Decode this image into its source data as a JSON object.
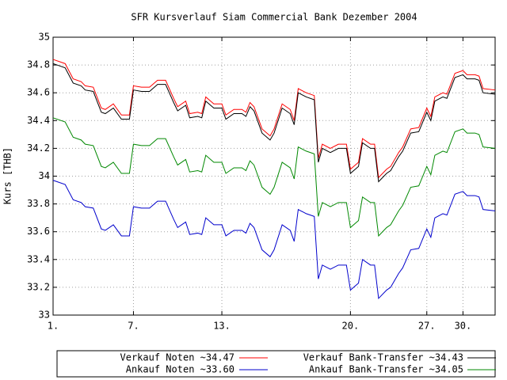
{
  "chart_data": {
    "type": "line",
    "title": "SFR Kursverlauf Siam Commercial Bank Dezember 2004",
    "y_label": "Kurs [THB]",
    "x": [
      0,
      3,
      5,
      7,
      8,
      10,
      12,
      13,
      15,
      17,
      19,
      20,
      22,
      24,
      26,
      28,
      30,
      31,
      33,
      34,
      36,
      37,
      38,
      40,
      42,
      43,
      45,
      47,
      48,
      49,
      50,
      52,
      54,
      55,
      57,
      59,
      60,
      61,
      63,
      65,
      66,
      67,
      69,
      71,
      73,
      74,
      76,
      77,
      79,
      80,
      81,
      83,
      84,
      86,
      87,
      89,
      91,
      93,
      94,
      95,
      97,
      98,
      100,
      102,
      103,
      105,
      106,
      107,
      110
    ],
    "xlim": [
      0,
      110
    ],
    "xticks": [
      {
        "value": 0,
        "label": "1."
      },
      {
        "value": 20,
        "label": "7."
      },
      {
        "value": 42,
        "label": "13."
      },
      {
        "value": 74,
        "label": "20."
      },
      {
        "value": 93,
        "label": "27."
      },
      {
        "value": 102,
        "label": "30."
      }
    ],
    "ylim": [
      33,
      35
    ],
    "yticks": [
      33,
      33.2,
      33.4,
      33.6,
      33.8,
      34,
      34.2,
      34.4,
      34.6,
      34.8,
      35
    ],
    "grid": true,
    "legend": "bottom",
    "series": [
      {
        "name": "Verkauf Noten ~34.47",
        "color": "#ff0000",
        "values": [
          34.84,
          34.81,
          34.7,
          34.68,
          34.65,
          34.64,
          34.49,
          34.48,
          34.52,
          34.44,
          34.44,
          34.65,
          34.64,
          34.64,
          34.69,
          34.69,
          34.56,
          34.5,
          34.54,
          34.45,
          34.46,
          34.45,
          34.57,
          34.52,
          34.52,
          34.44,
          34.48,
          34.48,
          34.46,
          34.53,
          34.5,
          34.34,
          34.29,
          34.34,
          34.52,
          34.48,
          34.4,
          34.63,
          34.6,
          34.58,
          34.13,
          34.23,
          34.2,
          34.23,
          34.23,
          34.05,
          34.1,
          34.27,
          34.23,
          34.23,
          33.99,
          34.05,
          34.07,
          34.17,
          34.21,
          34.34,
          34.35,
          34.49,
          34.43,
          34.57,
          34.6,
          34.59,
          34.74,
          34.76,
          34.73,
          34.73,
          34.72,
          34.63,
          34.62
        ]
      },
      {
        "name": "Verkauf Bank-Transfer ~34.43",
        "color": "#000000",
        "values": [
          34.81,
          34.78,
          34.67,
          34.65,
          34.62,
          34.61,
          34.46,
          34.45,
          34.49,
          34.41,
          34.41,
          34.62,
          34.61,
          34.61,
          34.66,
          34.66,
          34.53,
          34.47,
          34.51,
          34.42,
          34.43,
          34.42,
          34.54,
          34.49,
          34.49,
          34.41,
          34.45,
          34.45,
          34.43,
          34.5,
          34.47,
          34.31,
          34.26,
          34.31,
          34.49,
          34.45,
          34.37,
          34.6,
          34.57,
          34.55,
          34.1,
          34.2,
          34.17,
          34.2,
          34.2,
          34.02,
          34.07,
          34.24,
          34.2,
          34.2,
          33.96,
          34.02,
          34.04,
          34.14,
          34.18,
          34.31,
          34.32,
          34.46,
          34.4,
          34.54,
          34.57,
          34.56,
          34.71,
          34.73,
          34.7,
          34.7,
          34.69,
          34.6,
          34.59
        ]
      },
      {
        "name": "Ankauf Noten ~33.60",
        "color": "#0000cc",
        "values": [
          33.97,
          33.94,
          33.83,
          33.81,
          33.78,
          33.77,
          33.62,
          33.61,
          33.65,
          33.57,
          33.57,
          33.78,
          33.77,
          33.77,
          33.82,
          33.82,
          33.69,
          33.63,
          33.67,
          33.58,
          33.59,
          33.58,
          33.7,
          33.65,
          33.65,
          33.57,
          33.61,
          33.61,
          33.59,
          33.66,
          33.63,
          33.47,
          33.42,
          33.47,
          33.65,
          33.61,
          33.53,
          33.76,
          33.73,
          33.71,
          33.26,
          33.36,
          33.33,
          33.36,
          33.36,
          33.18,
          33.23,
          33.4,
          33.36,
          33.36,
          33.12,
          33.18,
          33.2,
          33.3,
          33.34,
          33.47,
          33.48,
          33.62,
          33.56,
          33.7,
          33.73,
          33.72,
          33.87,
          33.89,
          33.86,
          33.86,
          33.85,
          33.76,
          33.75
        ]
      },
      {
        "name": "Ankauf Bank-Transfer ~34.05",
        "color": "#008800",
        "values": [
          34.42,
          34.39,
          34.28,
          34.26,
          34.23,
          34.22,
          34.07,
          34.06,
          34.1,
          34.02,
          34.02,
          34.23,
          34.22,
          34.22,
          34.27,
          34.27,
          34.14,
          34.08,
          34.12,
          34.03,
          34.04,
          34.03,
          34.15,
          34.1,
          34.1,
          34.02,
          34.06,
          34.06,
          34.04,
          34.11,
          34.08,
          33.92,
          33.87,
          33.92,
          34.1,
          34.06,
          33.98,
          34.21,
          34.18,
          34.16,
          33.71,
          33.81,
          33.78,
          33.81,
          33.81,
          33.63,
          33.68,
          33.85,
          33.81,
          33.81,
          33.57,
          33.63,
          33.65,
          33.75,
          33.79,
          33.92,
          33.93,
          34.07,
          34.01,
          34.15,
          34.18,
          34.17,
          34.32,
          34.34,
          34.31,
          34.31,
          34.3,
          34.21,
          34.2
        ]
      }
    ]
  }
}
